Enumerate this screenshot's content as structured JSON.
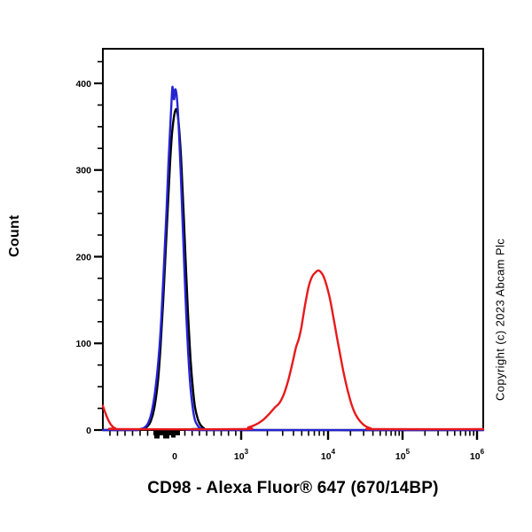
{
  "figure": {
    "y_axis_label": "Count",
    "x_axis_label": "CD98 - Alexa Fluor® 647 (670/14BP)",
    "copyright_text": "Copyright (c) 2023 Abcam Plc"
  },
  "chart_data": {
    "type": "line",
    "subtype": "flow-cytometry-overlay-histogram",
    "title": "",
    "xlabel": "CD98 - Alexa Fluor® 647 (670/14BP)",
    "ylabel": "Count",
    "x_scale": "biexponential (linear around 0, logarithmic decades 10^3 to 10^6)",
    "x_tick_labels": [
      "0",
      "10^3",
      "10^4",
      "10^5",
      "10^6"
    ],
    "y_ticks": [
      0,
      100,
      200,
      300,
      400
    ],
    "y_minor_step": 25,
    "ylim": [
      0,
      440
    ],
    "grid": false,
    "legend": "none",
    "axis_color": "#000000",
    "points_format": "each point is [x as fraction of plot width along biexponential axis, count]",
    "series": [
      {
        "name": "control-black",
        "color": "#000000",
        "peak_summary": {
          "peak_position": "~0 (negative/control population)",
          "peak_count": 370
        },
        "points": [
          [
            0.0,
            0
          ],
          [
            0.0909,
            0
          ],
          [
            0.1049,
            1
          ],
          [
            0.1166,
            4
          ],
          [
            0.1259,
            10
          ],
          [
            0.1352,
            25
          ],
          [
            0.1445,
            55
          ],
          [
            0.1515,
            95
          ],
          [
            0.1585,
            148
          ],
          [
            0.1655,
            210
          ],
          [
            0.1725,
            272
          ],
          [
            0.1772,
            312
          ],
          [
            0.1818,
            342
          ],
          [
            0.1865,
            360
          ],
          [
            0.19,
            368
          ],
          [
            0.1935,
            370
          ],
          [
            0.197,
            363
          ],
          [
            0.2005,
            348
          ],
          [
            0.2051,
            318
          ],
          [
            0.2098,
            275
          ],
          [
            0.2145,
            228
          ],
          [
            0.2191,
            180
          ],
          [
            0.2238,
            135
          ],
          [
            0.2284,
            97
          ],
          [
            0.2331,
            66
          ],
          [
            0.2378,
            43
          ],
          [
            0.2424,
            26
          ],
          [
            0.2494,
            13
          ],
          [
            0.2564,
            6
          ],
          [
            0.2657,
            2
          ],
          [
            0.2774,
            0
          ],
          [
            1.0,
            0
          ]
        ]
      },
      {
        "name": "control-blue",
        "color": "#2424d2",
        "peak_summary": {
          "peak_position": "~0 (negative/control population)",
          "peak_count": 396
        },
        "points": [
          [
            0.0,
            0
          ],
          [
            0.084,
            0
          ],
          [
            0.098,
            1
          ],
          [
            0.11,
            3
          ],
          [
            0.119,
            8
          ],
          [
            0.128,
            20
          ],
          [
            0.1375,
            45
          ],
          [
            0.1469,
            85
          ],
          [
            0.1538,
            130
          ],
          [
            0.1608,
            192
          ],
          [
            0.1678,
            258
          ],
          [
            0.1725,
            308
          ],
          [
            0.1772,
            350
          ],
          [
            0.1807,
            380
          ],
          [
            0.183,
            396
          ],
          [
            0.1853,
            385
          ],
          [
            0.1876,
            382
          ],
          [
            0.19,
            393
          ],
          [
            0.1935,
            388
          ],
          [
            0.197,
            370
          ],
          [
            0.2005,
            340
          ],
          [
            0.2051,
            292
          ],
          [
            0.2098,
            238
          ],
          [
            0.2145,
            184
          ],
          [
            0.2191,
            134
          ],
          [
            0.2238,
            93
          ],
          [
            0.2284,
            60
          ],
          [
            0.2331,
            37
          ],
          [
            0.2378,
            21
          ],
          [
            0.2424,
            11
          ],
          [
            0.2494,
            5
          ],
          [
            0.2564,
            2
          ],
          [
            0.2657,
            1
          ],
          [
            0.2751,
            0
          ],
          [
            1.0,
            0
          ]
        ]
      },
      {
        "name": "cd98-stained-red",
        "color": "#e8191c",
        "peak_summary": {
          "peak_position": "~7×10^3 (CD98 positive population)",
          "peak_count": 183,
          "edge_spike_count_at_left_axis": 27
        },
        "points": [
          [
            0.0,
            27
          ],
          [
            0.0047,
            21
          ],
          [
            0.0117,
            13
          ],
          [
            0.0186,
            7
          ],
          [
            0.0256,
            3
          ],
          [
            0.0326,
            1
          ],
          [
            0.042,
            0
          ],
          [
            0.3636,
            0
          ],
          [
            0.3823,
            2
          ],
          [
            0.4009,
            5
          ],
          [
            0.4196,
            10
          ],
          [
            0.4382,
            18
          ],
          [
            0.4522,
            25
          ],
          [
            0.4639,
            30
          ],
          [
            0.4755,
            40
          ],
          [
            0.4872,
            56
          ],
          [
            0.4988,
            77
          ],
          [
            0.5082,
            95
          ],
          [
            0.5152,
            104
          ],
          [
            0.5221,
            118
          ],
          [
            0.5315,
            143
          ],
          [
            0.5408,
            164
          ],
          [
            0.5501,
            176
          ],
          [
            0.5594,
            181
          ],
          [
            0.5664,
            183
          ],
          [
            0.5734,
            181
          ],
          [
            0.5804,
            176
          ],
          [
            0.5874,
            167
          ],
          [
            0.5967,
            151
          ],
          [
            0.6061,
            129
          ],
          [
            0.6154,
            106
          ],
          [
            0.6247,
            84
          ],
          [
            0.634,
            63
          ],
          [
            0.6434,
            45
          ],
          [
            0.6527,
            30
          ],
          [
            0.662,
            19
          ],
          [
            0.6713,
            12
          ],
          [
            0.6807,
            7
          ],
          [
            0.6923,
            3
          ],
          [
            0.704,
            1
          ],
          [
            0.7179,
            0
          ],
          [
            1.0,
            0
          ]
        ]
      }
    ]
  }
}
